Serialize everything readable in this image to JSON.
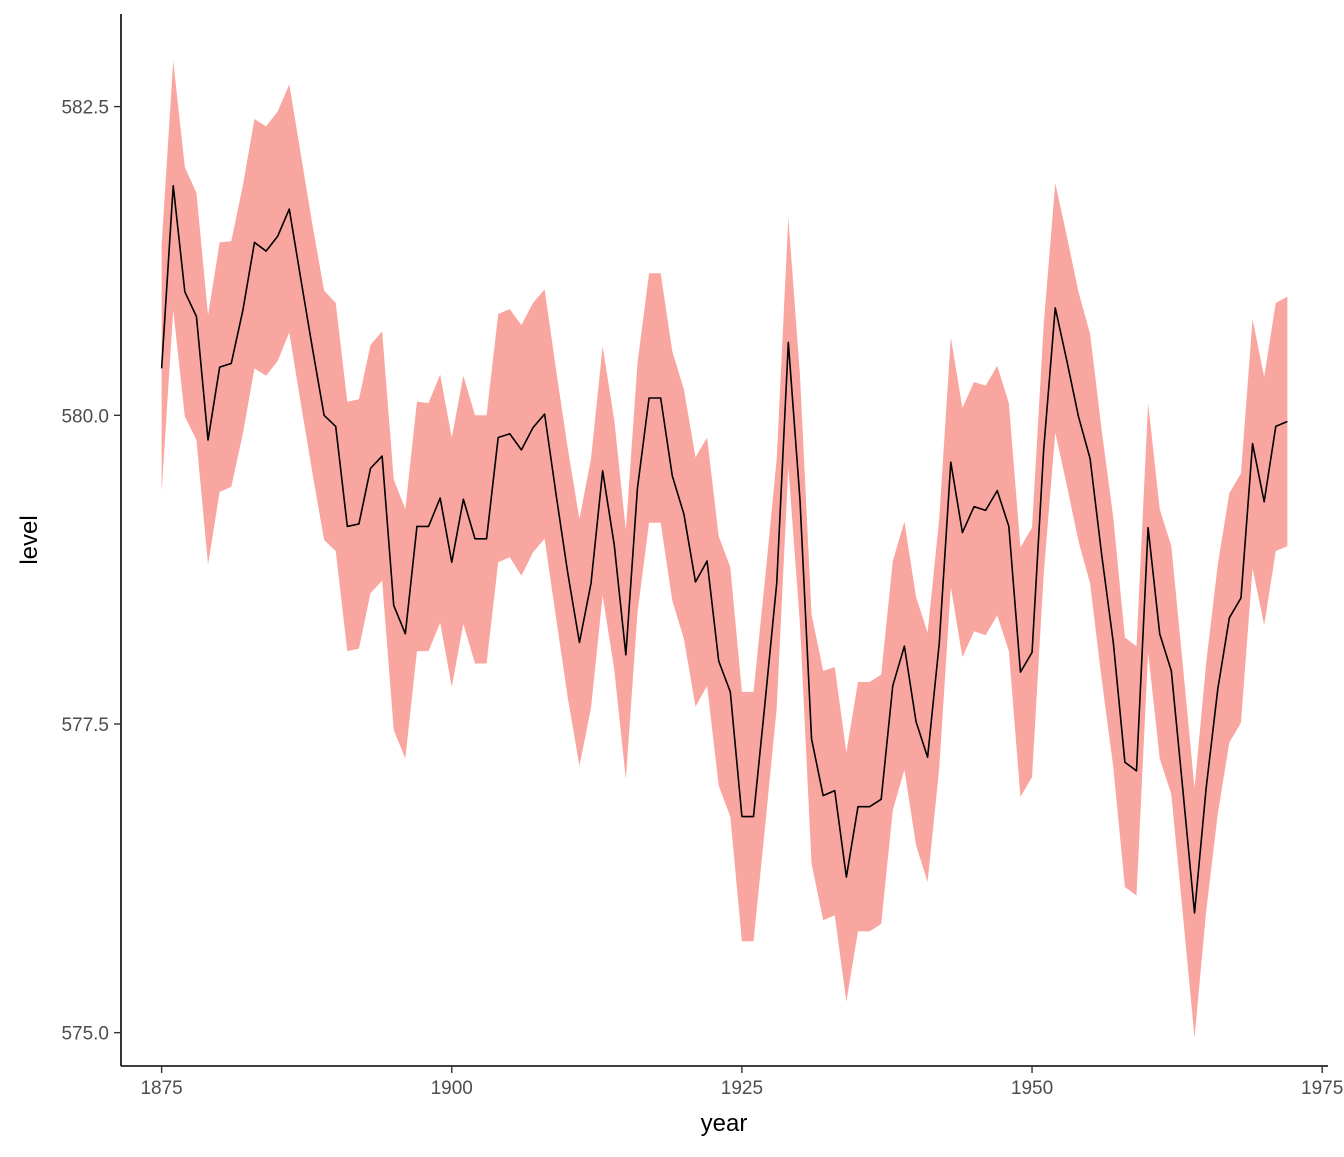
{
  "chart_data": {
    "type": "area",
    "title": "",
    "xlabel": "year",
    "ylabel": "level",
    "xlim": [
      1871.5,
      1975.5
    ],
    "ylim": [
      574.73,
      583.25
    ],
    "xticks": [
      1875,
      1900,
      1925,
      1950,
      1975
    ],
    "xtick_labels": [
      "1875",
      "1900",
      "1925",
      "1950",
      "1975"
    ],
    "yticks": [
      575.0,
      577.5,
      580.0,
      582.5
    ],
    "ytick_labels": [
      "575.0",
      "577.5",
      "580.0",
      "582.5"
    ],
    "grid": false,
    "legend": "none",
    "series": [
      {
        "type": "ribbon",
        "color": "#F8766D",
        "opacity": 0.65,
        "x": [
          1875,
          1876,
          1877,
          1878,
          1879,
          1880,
          1881,
          1882,
          1883,
          1884,
          1885,
          1886,
          1887,
          1888,
          1889,
          1890,
          1891,
          1892,
          1893,
          1894,
          1895,
          1896,
          1897,
          1898,
          1899,
          1900,
          1901,
          1902,
          1903,
          1904,
          1905,
          1906,
          1907,
          1908,
          1909,
          1910,
          1911,
          1912,
          1913,
          1914,
          1915,
          1916,
          1917,
          1918,
          1919,
          1920,
          1921,
          1922,
          1923,
          1924,
          1925,
          1926,
          1927,
          1928,
          1929,
          1930,
          1931,
          1932,
          1933,
          1934,
          1935,
          1936,
          1937,
          1938,
          1939,
          1940,
          1941,
          1942,
          1943,
          1944,
          1945,
          1946,
          1947,
          1948,
          1949,
          1950,
          1951,
          1952,
          1953,
          1954,
          1955,
          1956,
          1957,
          1958,
          1959,
          1960,
          1961,
          1962,
          1963,
          1964,
          1965,
          1966,
          1967,
          1968,
          1969,
          1970,
          1971,
          1972
        ],
        "ymin": [
          579.38,
          580.85,
          579.99,
          579.8,
          578.79,
          579.38,
          579.42,
          579.85,
          580.38,
          580.32,
          580.44,
          580.67,
          580.09,
          579.53,
          578.99,
          578.9,
          578.09,
          578.11,
          578.56,
          578.66,
          577.45,
          577.22,
          578.09,
          578.09,
          578.32,
          577.8,
          578.31,
          577.99,
          577.99,
          578.81,
          578.85,
          578.7,
          578.89,
          579.0,
          578.35,
          577.71,
          577.16,
          577.63,
          578.54,
          577.94,
          577.05,
          578.4,
          579.13,
          579.13,
          578.5,
          578.19,
          577.64,
          577.81,
          577.0,
          576.75,
          575.74,
          575.74,
          576.67,
          577.63,
          579.58,
          578.31,
          576.37,
          575.91,
          575.95,
          575.25,
          575.82,
          575.82,
          575.88,
          576.8,
          577.13,
          576.52,
          576.22,
          577.14,
          578.61,
          578.04,
          578.25,
          578.22,
          578.38,
          578.09,
          576.91,
          577.07,
          578.71,
          579.86,
          579.43,
          578.98,
          578.64,
          577.86,
          577.15,
          576.18,
          576.11,
          578.08,
          577.22,
          576.93,
          575.95,
          574.96,
          575.98,
          576.77,
          577.35,
          577.51,
          578.76,
          578.3,
          578.9,
          578.94
        ],
        "ymax": [
          581.38,
          582.87,
          582.01,
          581.8,
          580.81,
          581.4,
          581.41,
          581.86,
          582.4,
          582.34,
          582.46,
          582.68,
          582.11,
          581.54,
          581.01,
          580.91,
          580.11,
          580.13,
          580.57,
          580.68,
          579.48,
          579.24,
          580.11,
          580.1,
          580.33,
          579.82,
          580.32,
          580.0,
          580.0,
          580.82,
          580.86,
          580.73,
          580.91,
          581.02,
          580.36,
          579.73,
          579.16,
          579.65,
          580.56,
          579.96,
          579.07,
          580.42,
          581.15,
          581.15,
          580.52,
          580.21,
          579.66,
          579.82,
          579.02,
          578.77,
          577.76,
          577.76,
          578.68,
          579.65,
          581.6,
          580.33,
          578.39,
          577.93,
          577.96,
          577.27,
          577.84,
          577.84,
          577.9,
          578.82,
          579.14,
          578.53,
          578.24,
          579.16,
          580.63,
          580.06,
          580.27,
          580.24,
          580.4,
          580.1,
          578.93,
          579.09,
          580.73,
          581.88,
          581.45,
          581.0,
          580.66,
          579.88,
          579.17,
          578.2,
          578.13,
          580.1,
          579.24,
          578.94,
          577.97,
          576.98,
          577.99,
          578.79,
          579.37,
          579.53,
          580.78,
          580.31,
          580.91,
          580.96
        ]
      },
      {
        "type": "line",
        "color": "#000000",
        "x": [
          1875,
          1876,
          1877,
          1878,
          1879,
          1880,
          1881,
          1882,
          1883,
          1884,
          1885,
          1886,
          1887,
          1888,
          1889,
          1890,
          1891,
          1892,
          1893,
          1894,
          1895,
          1896,
          1897,
          1898,
          1899,
          1900,
          1901,
          1902,
          1903,
          1904,
          1905,
          1906,
          1907,
          1908,
          1909,
          1910,
          1911,
          1912,
          1913,
          1914,
          1915,
          1916,
          1917,
          1918,
          1919,
          1920,
          1921,
          1922,
          1923,
          1924,
          1925,
          1926,
          1927,
          1928,
          1929,
          1930,
          1931,
          1932,
          1933,
          1934,
          1935,
          1936,
          1937,
          1938,
          1939,
          1940,
          1941,
          1942,
          1943,
          1944,
          1945,
          1946,
          1947,
          1948,
          1949,
          1950,
          1951,
          1952,
          1953,
          1954,
          1955,
          1956,
          1957,
          1958,
          1959,
          1960,
          1961,
          1962,
          1963,
          1964,
          1965,
          1966,
          1967,
          1968,
          1969,
          1970,
          1971,
          1972
        ],
        "y": [
          580.38,
          581.86,
          581.0,
          580.8,
          579.8,
          580.39,
          580.42,
          580.85,
          581.4,
          581.33,
          581.45,
          581.67,
          581.1,
          580.54,
          580.0,
          579.91,
          579.1,
          579.12,
          579.57,
          579.67,
          578.46,
          578.23,
          579.1,
          579.1,
          579.33,
          578.81,
          579.32,
          579.0,
          579.0,
          579.82,
          579.85,
          579.72,
          579.9,
          580.01,
          579.35,
          578.72,
          578.16,
          578.64,
          579.55,
          578.95,
          578.06,
          579.41,
          580.14,
          580.14,
          579.51,
          579.2,
          578.65,
          578.82,
          578.01,
          577.76,
          576.75,
          576.75,
          577.68,
          578.64,
          580.59,
          579.32,
          577.38,
          576.92,
          576.96,
          576.26,
          576.83,
          576.83,
          576.89,
          577.81,
          578.13,
          577.52,
          577.23,
          578.15,
          579.62,
          579.05,
          579.26,
          579.23,
          579.39,
          579.1,
          577.92,
          578.08,
          579.72,
          580.87,
          580.44,
          579.99,
          579.65,
          578.87,
          578.16,
          577.19,
          577.12,
          579.09,
          578.23,
          577.93,
          576.96,
          575.97,
          576.98,
          577.78,
          578.36,
          578.52,
          579.77,
          579.3,
          579.91,
          579.95
        ]
      }
    ]
  }
}
